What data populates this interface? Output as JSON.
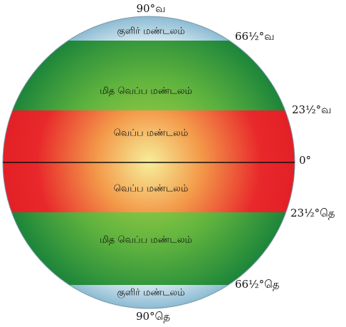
{
  "zones": [
    {
      "label": "குளிர் மண்டலம்"
    },
    {
      "label": "மித வெப்ப மண்டலம்"
    },
    {
      "label": "வெப்ப மண்டலம்"
    },
    {
      "label": "வெப்ப மண்டலம்"
    },
    {
      "label": "மித வெப்ப மண்டலம்"
    },
    {
      "label": "குளிர் மண்டலம்"
    }
  ],
  "latitudes": [
    "90°வ",
    "66½°வ",
    "23½°வ",
    "0°",
    "23½°தெ",
    "66½°தெ",
    "90°தெ"
  ]
}
